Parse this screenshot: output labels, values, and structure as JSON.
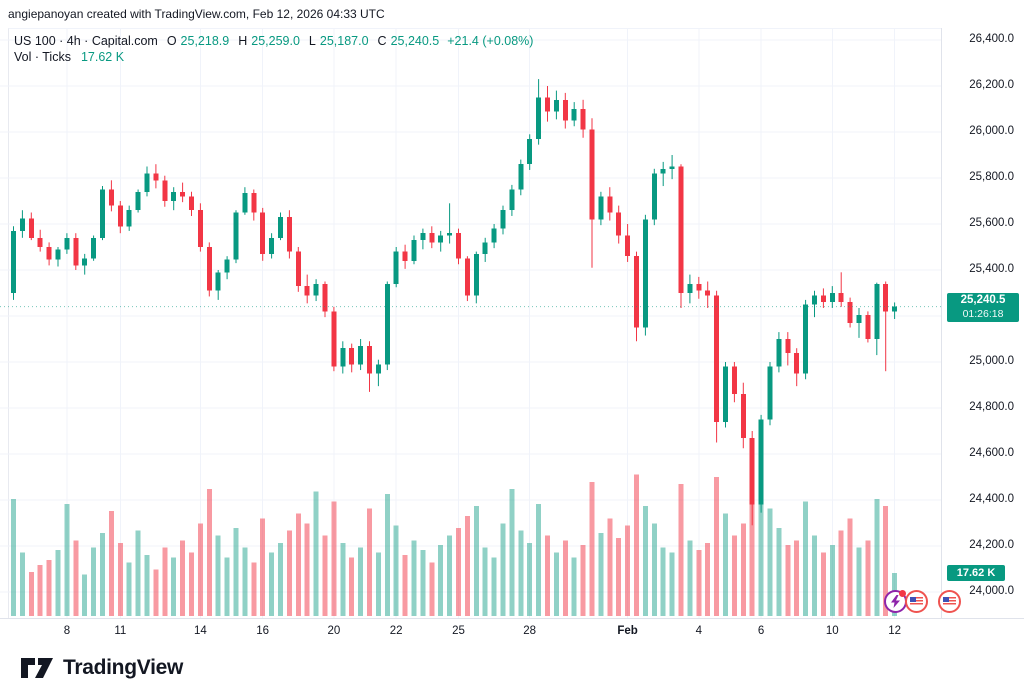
{
  "topbar": {
    "attribution": "angiepanoyan created with TradingView.com, Feb 12, 2026 04:33 UTC"
  },
  "legend": {
    "title": "US 100 · 4h · Capital.com",
    "o_label": "O",
    "o_value": "25,218.9",
    "h_label": "H",
    "h_value": "25,259.0",
    "l_label": "L",
    "l_value": "25,187.0",
    "c_label": "C",
    "c_value": "25,240.5",
    "change": "+21.4 (+0.08%)",
    "volume_label": "Vol · Ticks",
    "volume_value": "17.62 K"
  },
  "price_axis": {
    "labels": [
      {
        "text": "26,400.0",
        "price": 26400
      },
      {
        "text": "26,200.0",
        "price": 26200
      },
      {
        "text": "26,000.0",
        "price": 26000
      },
      {
        "text": "25,800.0",
        "price": 25800
      },
      {
        "text": "25,600.0",
        "price": 25600
      },
      {
        "text": "25,400.0",
        "price": 25400
      },
      {
        "text": "25,000.0",
        "price": 25000
      },
      {
        "text": "24,800.0",
        "price": 24800
      },
      {
        "text": "24,600.0",
        "price": 24600
      },
      {
        "text": "24,400.0",
        "price": 24400
      },
      {
        "text": "24,200.0",
        "price": 24200
      },
      {
        "text": "24,000.0",
        "price": 24000
      }
    ],
    "current_price_badge": {
      "price": "25,240.5",
      "countdown": "01:26:18"
    },
    "volume_badge": "17.62 K"
  },
  "footer": {
    "brand": "TradingView"
  },
  "colors": {
    "up": "#089981",
    "down": "#f23645",
    "vol_up": "rgba(8,153,129,0.45)",
    "vol_down": "rgba(242,54,69,0.5)",
    "grid": "#f0f3fa",
    "axis_border": "#e0e3eb",
    "text": "#131722",
    "badge": "#089981",
    "event_purple": "#8e24aa",
    "event_red": "#ef5350",
    "flag_blue": "#3f51b5"
  },
  "event_markers": [
    {
      "icon": "lightning-economic-event",
      "has_alert_dot": true
    },
    {
      "icon": "us-flag-economic-event",
      "has_alert_dot": false
    },
    {
      "icon": "us-flag-economic-event",
      "has_alert_dot": false
    }
  ],
  "chart_data": {
    "type": "candlestick+volume",
    "title": "US 100 4h Capital.com",
    "symbol": "US 100",
    "interval": "4h",
    "exchange": "Capital.com",
    "current": {
      "open": 25218.9,
      "high": 25259.0,
      "low": 25187.0,
      "close": 25240.5,
      "change": 21.4,
      "change_pct": 0.08,
      "countdown": "01:26:18",
      "volume_ticks_k": 17.62
    },
    "y_axis": {
      "min_visible": 23930,
      "max_visible": 26500,
      "gridline_step": 200,
      "grid_prices": [
        26400,
        26200,
        26000,
        25800,
        25600,
        25400,
        25200,
        25000,
        24800,
        24600,
        24400,
        24200,
        24000
      ]
    },
    "current_price": 25240.5,
    "x_ticks": [
      {
        "label": "8",
        "i": 6
      },
      {
        "label": "11",
        "i": 12
      },
      {
        "label": "14",
        "i": 21
      },
      {
        "label": "16",
        "i": 28
      },
      {
        "label": "20",
        "i": 36
      },
      {
        "label": "22",
        "i": 43
      },
      {
        "label": "25",
        "i": 50
      },
      {
        "label": "28",
        "i": 58
      },
      {
        "label": "Feb",
        "i": 69,
        "bold": true
      },
      {
        "label": "4",
        "i": 77
      },
      {
        "label": "6",
        "i": 84
      },
      {
        "label": "10",
        "i": 92
      },
      {
        "label": "12",
        "i": 99
      }
    ],
    "candles": [
      [
        25300,
        25590,
        25270,
        25570
      ],
      [
        25570,
        25660,
        25540,
        25625
      ],
      [
        25625,
        25650,
        25530,
        25540
      ],
      [
        25540,
        25575,
        25480,
        25500
      ],
      [
        25500,
        25520,
        25420,
        25445
      ],
      [
        25445,
        25500,
        25415,
        25490
      ],
      [
        25490,
        25560,
        25470,
        25540
      ],
      [
        25540,
        25560,
        25400,
        25420
      ],
      [
        25420,
        25470,
        25380,
        25450
      ],
      [
        25450,
        25550,
        25440,
        25540
      ],
      [
        25540,
        25765,
        25530,
        25750
      ],
      [
        25750,
        25790,
        25655,
        25680
      ],
      [
        25680,
        25700,
        25560,
        25590
      ],
      [
        25590,
        25680,
        25570,
        25660
      ],
      [
        25660,
        25750,
        25650,
        25740
      ],
      [
        25740,
        25850,
        25720,
        25820
      ],
      [
        25820,
        25860,
        25755,
        25790
      ],
      [
        25790,
        25810,
        25675,
        25700
      ],
      [
        25700,
        25760,
        25660,
        25740
      ],
      [
        25740,
        25780,
        25695,
        25720
      ],
      [
        25720,
        25740,
        25635,
        25660
      ],
      [
        25660,
        25690,
        25480,
        25500
      ],
      [
        25500,
        25520,
        25285,
        25310
      ],
      [
        25310,
        25400,
        25270,
        25390
      ],
      [
        25390,
        25460,
        25360,
        25445
      ],
      [
        25445,
        25660,
        25430,
        25650
      ],
      [
        25650,
        25760,
        25640,
        25735
      ],
      [
        25735,
        25750,
        25615,
        25650
      ],
      [
        25650,
        25670,
        25440,
        25470
      ],
      [
        25470,
        25560,
        25450,
        25540
      ],
      [
        25540,
        25650,
        25530,
        25630
      ],
      [
        25630,
        25660,
        25450,
        25480
      ],
      [
        25480,
        25500,
        25305,
        25330
      ],
      [
        25330,
        25380,
        25255,
        25290
      ],
      [
        25290,
        25360,
        25265,
        25340
      ],
      [
        25340,
        25350,
        25195,
        25220
      ],
      [
        25220,
        25240,
        24960,
        24980
      ],
      [
        24980,
        25090,
        24950,
        25060
      ],
      [
        25060,
        25080,
        24955,
        24990
      ],
      [
        24990,
        25100,
        24965,
        25070
      ],
      [
        25070,
        25090,
        24870,
        24950
      ],
      [
        24950,
        25010,
        24895,
        24990
      ],
      [
        24990,
        25350,
        24965,
        25340
      ],
      [
        25340,
        25500,
        25325,
        25480
      ],
      [
        25480,
        25510,
        25405,
        25440
      ],
      [
        25440,
        25550,
        25425,
        25530
      ],
      [
        25530,
        25580,
        25490,
        25560
      ],
      [
        25560,
        25590,
        25495,
        25520
      ],
      [
        25520,
        25570,
        25480,
        25550
      ],
      [
        25550,
        25690,
        25515,
        25560
      ],
      [
        25560,
        25580,
        25425,
        25450
      ],
      [
        25450,
        25460,
        25265,
        25290
      ],
      [
        25290,
        25480,
        25255,
        25470
      ],
      [
        25470,
        25540,
        25435,
        25520
      ],
      [
        25520,
        25600,
        25495,
        25580
      ],
      [
        25580,
        25680,
        25555,
        25660
      ],
      [
        25660,
        25770,
        25635,
        25750
      ],
      [
        25750,
        25880,
        25725,
        25860
      ],
      [
        25860,
        25990,
        25835,
        25970
      ],
      [
        25970,
        26230,
        25945,
        26150
      ],
      [
        26150,
        26200,
        26045,
        26090
      ],
      [
        26090,
        26180,
        26055,
        26140
      ],
      [
        26140,
        26170,
        26015,
        26050
      ],
      [
        26050,
        26130,
        26025,
        26100
      ],
      [
        26100,
        26140,
        25975,
        26010
      ],
      [
        26010,
        26060,
        25410,
        25620
      ],
      [
        25620,
        25740,
        25595,
        25720
      ],
      [
        25720,
        25760,
        25615,
        25650
      ],
      [
        25650,
        25680,
        25515,
        25550
      ],
      [
        25550,
        25600,
        25435,
        25460
      ],
      [
        25460,
        25480,
        25090,
        25150
      ],
      [
        25150,
        25640,
        25115,
        25620
      ],
      [
        25620,
        25840,
        25595,
        25820
      ],
      [
        25820,
        25870,
        25765,
        25840
      ],
      [
        25840,
        25900,
        25795,
        25850
      ],
      [
        25850,
        25860,
        25235,
        25300
      ],
      [
        25300,
        25380,
        25255,
        25340
      ],
      [
        25340,
        25370,
        25275,
        25310
      ],
      [
        25310,
        25350,
        25235,
        25290
      ],
      [
        25290,
        25310,
        24650,
        24740
      ],
      [
        24740,
        25000,
        24715,
        24980
      ],
      [
        24980,
        25000,
        24825,
        24860
      ],
      [
        24860,
        24910,
        24625,
        24670
      ],
      [
        24670,
        24700,
        24290,
        24380
      ],
      [
        24380,
        24770,
        24345,
        24750
      ],
      [
        24750,
        25000,
        24725,
        24980
      ],
      [
        24980,
        25130,
        24955,
        25100
      ],
      [
        25100,
        25130,
        24985,
        25040
      ],
      [
        25040,
        25060,
        24895,
        24950
      ],
      [
        24950,
        25270,
        24925,
        25250
      ],
      [
        25250,
        25310,
        25195,
        25290
      ],
      [
        25290,
        25320,
        25235,
        25260
      ],
      [
        25260,
        25330,
        25235,
        25300
      ],
      [
        25300,
        25390,
        25240,
        25260
      ],
      [
        25260,
        25280,
        25150,
        25170
      ],
      [
        25170,
        25235,
        25105,
        25205
      ],
      [
        25205,
        25220,
        25085,
        25100
      ],
      [
        25100,
        25345,
        25030,
        25340
      ],
      [
        25340,
        25350,
        24960,
        25219
      ],
      [
        25218.9,
        25259,
        25187,
        25240.5
      ]
    ],
    "volumes_k": [
      48,
      26,
      18,
      21,
      23,
      27,
      46,
      31,
      17,
      28,
      34,
      43,
      30,
      22,
      35,
      25,
      19,
      28,
      24,
      31,
      26,
      38,
      52,
      33,
      24,
      36,
      28,
      22,
      40,
      26,
      30,
      35,
      42,
      38,
      51,
      33,
      47,
      30,
      24,
      28,
      44,
      26,
      50,
      37,
      25,
      31,
      27,
      22,
      29,
      33,
      36,
      41,
      45,
      28,
      24,
      38,
      52,
      35,
      30,
      46,
      33,
      26,
      31,
      24,
      29,
      55,
      34,
      40,
      32,
      37,
      58,
      45,
      38,
      28,
      26,
      54,
      31,
      27,
      30,
      57,
      42,
      33,
      38,
      49,
      53,
      44,
      36,
      29,
      31,
      47,
      33,
      26,
      29,
      35,
      40,
      28,
      31,
      48,
      45,
      17.62
    ]
  }
}
